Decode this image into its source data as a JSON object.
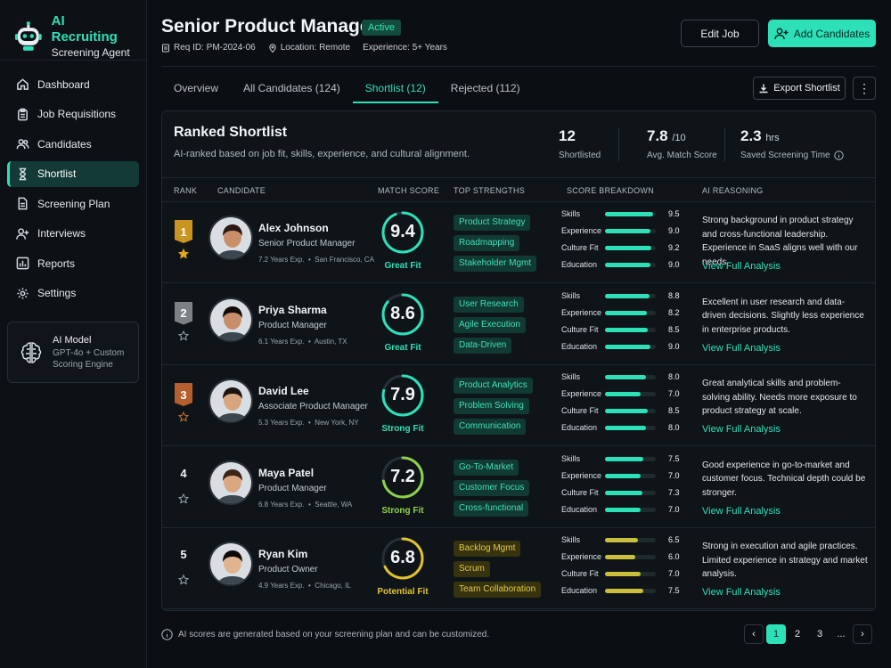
{
  "app": {
    "title": "AI Recruiting",
    "subtitle": "Screening Agent"
  },
  "sidebar": {
    "items": [
      {
        "label": "Dashboard",
        "icon": "home-icon"
      },
      {
        "label": "Job Requisitions",
        "icon": "clipboard-icon"
      },
      {
        "label": "Candidates",
        "icon": "users-icon"
      },
      {
        "label": "Shortlist",
        "icon": "hourglass-icon",
        "active": true
      },
      {
        "label": "Screening Plan",
        "icon": "document-icon"
      },
      {
        "label": "Interviews",
        "icon": "user-plus-icon"
      },
      {
        "label": "Reports",
        "icon": "bar-chart-icon"
      },
      {
        "label": "Settings",
        "icon": "gear-icon"
      }
    ],
    "model": {
      "title": "AI Model",
      "line1": "GPT-4o + Custom",
      "line2": "Scoring Engine"
    }
  },
  "header": {
    "title": "Senior Product Manager",
    "status": "Active",
    "req_id": "Req ID: PM-2024-06",
    "location": "Location: Remote",
    "experience": "Experience: 5+ Years",
    "edit_label": "Edit Job",
    "add_label": "Add Candidates"
  },
  "tabs": [
    "Overview",
    "All Candidates (124)",
    "Shortlist (12)",
    "Rejected (112)"
  ],
  "active_tab": 2,
  "export_label": "Export Shortlist",
  "panel": {
    "title": "Ranked Shortlist",
    "subtitle": "AI-ranked based on job fit, skills, experience, and cultural alignment.",
    "stats": [
      {
        "value": "12",
        "unit": "",
        "label": "Shortlisted"
      },
      {
        "value": "7.8",
        "unit": "/10",
        "label": "Avg. Match Score"
      },
      {
        "value": "2.3",
        "unit": "hrs",
        "label": "Saved Screening Time"
      }
    ],
    "columns": [
      "RANK",
      "CANDIDATE",
      "MATCH SCORE",
      "TOP STRENGTHS",
      "SCORE BREAKDOWN",
      "AI REASONING"
    ]
  },
  "breakdown_labels": [
    "Skills",
    "Experience",
    "Culture Fit",
    "Education"
  ],
  "candidates": [
    {
      "rank": "1",
      "medal": "#c9941f",
      "starred": true,
      "name": "Alex Johnson",
      "role": "Senior Product Manager",
      "years": "7.2 Years Exp.",
      "location": "San Francisco, CA",
      "score": "9.4",
      "fit": "Great Fit",
      "color": "#2ee0b8",
      "strengths": [
        "Product Strategy",
        "Roadmapping",
        "Stakeholder Mgmt"
      ],
      "breakdown": [
        "9.5",
        "9.0",
        "9.2",
        "9.0"
      ],
      "reasoning": "Strong background in product strategy and cross-functional leadership. Experience in SaaS aligns well with our needs.",
      "link": "View Full Analysis",
      "skin": "#c98f68",
      "hair": "#2a1a12"
    },
    {
      "rank": "2",
      "medal": "#7c8185",
      "starred": false,
      "name": "Priya Sharma",
      "role": "Product Manager",
      "years": "6.1 Years Exp.",
      "location": "Austin, TX",
      "score": "8.6",
      "fit": "Great Fit",
      "color": "#2ee0b8",
      "strengths": [
        "User Research",
        "Agile Execution",
        "Data-Driven"
      ],
      "breakdown": [
        "8.8",
        "8.2",
        "8.5",
        "9.0"
      ],
      "reasoning": "Excellent in user research and data-driven decisions. Slightly less experience in enterprise products.",
      "link": "View Full Analysis",
      "skin": "#c68e6b",
      "hair": "#120b08"
    },
    {
      "rank": "3",
      "medal": "#b5602e",
      "starred": false,
      "name": "David Lee",
      "role": "Associate Product Manager",
      "years": "5.3 Years Exp.",
      "location": "New York, NY",
      "score": "7.9",
      "fit": "Strong Fit",
      "color": "#2ee0b8",
      "strengths": [
        "Product Analytics",
        "Problem Solving",
        "Communication"
      ],
      "breakdown": [
        "8.0",
        "7.0",
        "8.5",
        "8.0"
      ],
      "reasoning": "Great analytical skills and problem-solving ability. Needs more exposure to product strategy at scale.",
      "link": "View Full Analysis",
      "skin": "#d7a67f",
      "hair": "#1b130e"
    },
    {
      "rank": "4",
      "medal": "",
      "starred": false,
      "name": "Maya Patel",
      "role": "Product Manager",
      "years": "6.8 Years Exp.",
      "location": "Seattle, WA",
      "score": "7.2",
      "fit": "Strong Fit",
      "color": "#8fd14a",
      "strengths": [
        "Go-To-Market",
        "Customer Focus",
        "Cross-functional"
      ],
      "breakdown": [
        "7.5",
        "7.0",
        "7.3",
        "7.0"
      ],
      "reasoning": "Good experience in go-to-market and customer focus. Technical depth could be stronger.",
      "link": "View Full Analysis",
      "skin": "#d9a883",
      "hair": "#3a2518"
    },
    {
      "rank": "5",
      "medal": "",
      "starred": false,
      "name": "Ryan Kim",
      "role": "Product Owner",
      "years": "4.9 Years Exp.",
      "location": "Chicago, IL",
      "score": "6.8",
      "fit": "Potential Fit",
      "color": "#e0c230",
      "strengths": [
        "Backlog Mgmt",
        "Scrum",
        "Team Collaboration"
      ],
      "breakdown": [
        "6.5",
        "6.0",
        "7.0",
        "7.5"
      ],
      "reasoning": "Strong in execution and agile practices. Limited experience in strategy and market analysis.",
      "link": "View Full Analysis",
      "skin": "#e0b48e",
      "hair": "#0e0a08"
    }
  ],
  "footer": {
    "note": "AI scores are generated based on your screening plan and can be customized.",
    "pages": [
      "1",
      "2",
      "3",
      "..."
    ]
  }
}
